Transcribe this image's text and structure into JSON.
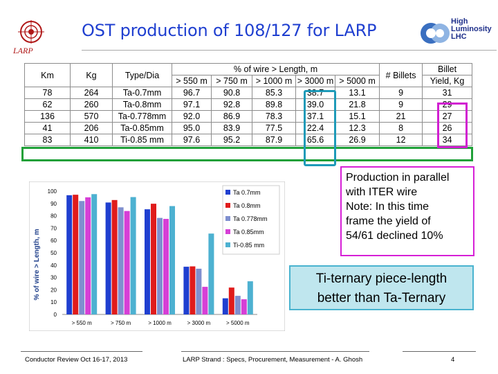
{
  "slide": {
    "title": "OST production of 108/127 for LARP",
    "larp_logo_text": "LARP",
    "hl_logo_lines": [
      "High",
      "Luminosity",
      "LHC"
    ]
  },
  "table": {
    "header_row1": [
      "Km",
      "Kg",
      "Type/Dia",
      "% of wire > Length, m",
      "# Billets",
      "Billet"
    ],
    "header_row2": [
      "> 550 m",
      "> 750 m",
      "> 1000 m",
      "> 3000 m",
      "> 5000 m",
      "Yield, Kg"
    ],
    "rows": [
      [
        "78",
        "264",
        "Ta-0.7mm",
        "96.7",
        "90.8",
        "85.3",
        "38.7",
        "13.1",
        "9",
        "31"
      ],
      [
        "62",
        "260",
        "Ta-0.8mm",
        "97.1",
        "92.8",
        "89.8",
        "39.0",
        "21.8",
        "9",
        "29"
      ],
      [
        "136",
        "570",
        "Ta-0.778mm",
        "92.0",
        "86.9",
        "78.3",
        "37.1",
        "15.1",
        "21",
        "27"
      ],
      [
        "41",
        "206",
        "Ta-0.85mm",
        "95.0",
        "83.9",
        "77.5",
        "22.4",
        "12.3",
        "8",
        "26"
      ],
      [
        "83",
        "410",
        "Ti-0.85 mm",
        "97.6",
        "95.2",
        "87.9",
        "65.6",
        "26.9",
        "12",
        "34"
      ]
    ]
  },
  "chart_data": {
    "type": "bar",
    "categories": [
      "> 550 m",
      "> 750 m",
      "> 1000 m",
      "> 3000 m",
      "> 5000 m"
    ],
    "series": [
      {
        "name": "Ta 0.7mm",
        "color": "#1f3fd0",
        "values": [
          96.7,
          90.8,
          85.3,
          38.7,
          13.1
        ]
      },
      {
        "name": "Ta 0.8mm",
        "color": "#e01b1b",
        "values": [
          97.1,
          92.8,
          89.8,
          39.0,
          21.8
        ]
      },
      {
        "name": "Ta 0.778mm",
        "color": "#7f8fcf",
        "values": [
          92.0,
          86.9,
          78.3,
          37.1,
          15.1
        ]
      },
      {
        "name": "Ta 0.85mm",
        "color": "#d63fd6",
        "values": [
          95.0,
          83.9,
          77.5,
          22.4,
          12.3
        ]
      },
      {
        "name": "Ti-0.85 mm",
        "color": "#4db1d1",
        "values": [
          97.6,
          95.2,
          87.9,
          65.6,
          26.9
        ]
      }
    ],
    "ylabel": "% of wire > Length, m",
    "ylim": [
      0,
      100
    ],
    "yticks": [
      0,
      10,
      20,
      30,
      40,
      50,
      60,
      70,
      80,
      90,
      100
    ],
    "legend_position": "top-right",
    "grid": false
  },
  "note": {
    "lines": [
      "Production in parallel",
      "with ITER wire",
      "Note: In this time",
      "frame the yield of",
      "54/61 declined 10%"
    ]
  },
  "callout": {
    "lines": [
      "Ti-ternary piece-length",
      "better than Ta-Ternary"
    ]
  },
  "footer": {
    "left": "Conductor Review Oct 16-17, 2013",
    "center": "LARP Strand : Specs, Procurement, Measurement - A. Ghosh",
    "page": "4"
  }
}
